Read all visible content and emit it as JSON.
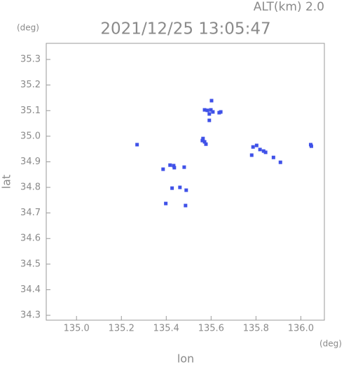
{
  "chart_data": {
    "type": "scatter",
    "title": "2021/12/25 13:05:47",
    "subtitle": "ALT(km) 2.0",
    "x_label": "lon",
    "y_label": "lat",
    "x_unit": "(deg)",
    "y_unit": "(deg)",
    "series": [
      {
        "color": "#3f51e8",
        "x": [
          135.602,
          135.571,
          135.583,
          135.599,
          135.608,
          135.592,
          135.643,
          135.636,
          135.592,
          135.564,
          135.571,
          135.577,
          135.561,
          135.27,
          135.787,
          135.803,
          135.818,
          135.834,
          135.843,
          135.781,
          135.878,
          135.909,
          136.044,
          136.047,
          135.417,
          135.433,
          135.436,
          135.48,
          135.386,
          135.426,
          135.461,
          135.489,
          135.398,
          135.486
        ],
        "values": [
          35.139,
          35.103,
          35.101,
          35.103,
          35.095,
          35.087,
          35.095,
          35.092,
          35.062,
          34.991,
          34.978,
          34.969,
          34.983,
          34.967,
          34.958,
          34.964,
          34.948,
          34.942,
          34.937,
          34.926,
          34.917,
          34.898,
          34.967,
          34.961,
          34.887,
          34.885,
          34.877,
          34.879,
          34.871,
          34.797,
          34.8,
          34.789,
          34.737,
          34.729
        ]
      }
    ],
    "xlim": [
      134.865,
      136.105
    ],
    "ylim": [
      34.281,
      35.363
    ],
    "xticks": [
      {
        "value": 135.0,
        "label": "135.0"
      },
      135.2,
      135.4,
      135.6,
      135.8,
      {
        "value": 136.0,
        "label": "136.0"
      }
    ],
    "yticks": [
      34.3,
      34.4,
      34.5,
      34.6,
      34.7,
      34.8,
      34.9,
      {
        "value": 35.0,
        "label": "35.0"
      },
      35.1,
      35.2,
      35.3
    ]
  }
}
